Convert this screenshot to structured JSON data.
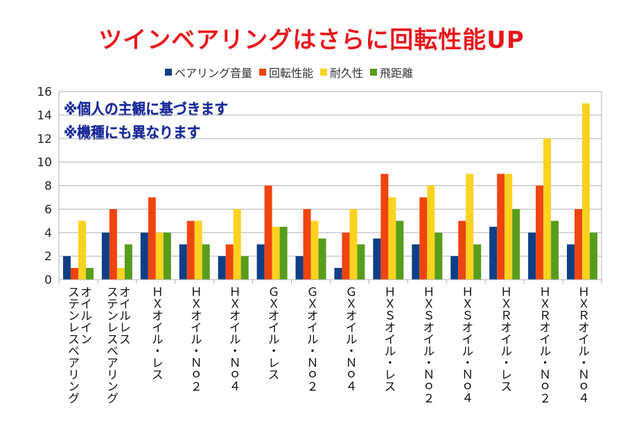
{
  "chart_data": {
    "type": "bar",
    "title": "ツインベアリングはさらに回転性能UP",
    "annotations": [
      "※個人の主観に基づきます",
      "※機種にも異なります"
    ],
    "xlabel": "",
    "ylabel": "",
    "ylim": [
      0,
      16
    ],
    "yticks": [
      0,
      2,
      4,
      6,
      8,
      10,
      12,
      14,
      16
    ],
    "grid": true,
    "legend_position": "top",
    "categories": [
      "オイルイン\nステンレスベアリング",
      "オイルレス\nステンレスベアリング",
      "ＨＸオイル・レス",
      "ＨＸオイル・Ｎｏ２",
      "ＨＸオイル・Ｎｏ４",
      "ＧＸオイル・レス",
      "ＧＸオイル・Ｎｏ２",
      "ＧＸオイル・Ｎｏ４",
      "ＨＸＳオイル・レス",
      "ＨＸＳオイル・Ｎｏ２",
      "ＨＸＳオイル・Ｎｏ４",
      "ＨＸＲオイル・レス",
      "ＨＸＲオイル・Ｎｏ２",
      "ＨＸＲオイル・Ｎｏ４"
    ],
    "series": [
      {
        "name": "ベアリング音量",
        "color": "#0e3f86",
        "values": [
          2,
          4,
          4,
          3,
          2,
          3,
          2,
          1,
          3.5,
          3,
          2,
          4.5,
          4,
          3
        ]
      },
      {
        "name": "回転性能",
        "color": "#f0440f",
        "values": [
          1,
          6,
          7,
          5,
          3,
          8,
          6,
          4,
          9,
          7,
          5,
          9,
          8,
          6
        ]
      },
      {
        "name": "耐久性",
        "color": "#fbd220",
        "values": [
          5,
          1,
          4,
          5,
          6,
          4.5,
          5,
          6,
          7,
          8,
          9,
          9,
          12,
          15
        ]
      },
      {
        "name": "飛距離",
        "color": "#579d1c",
        "values": [
          1,
          3,
          4,
          3,
          2,
          4.5,
          3.5,
          3,
          5,
          4,
          3,
          6,
          5,
          4
        ]
      }
    ]
  }
}
